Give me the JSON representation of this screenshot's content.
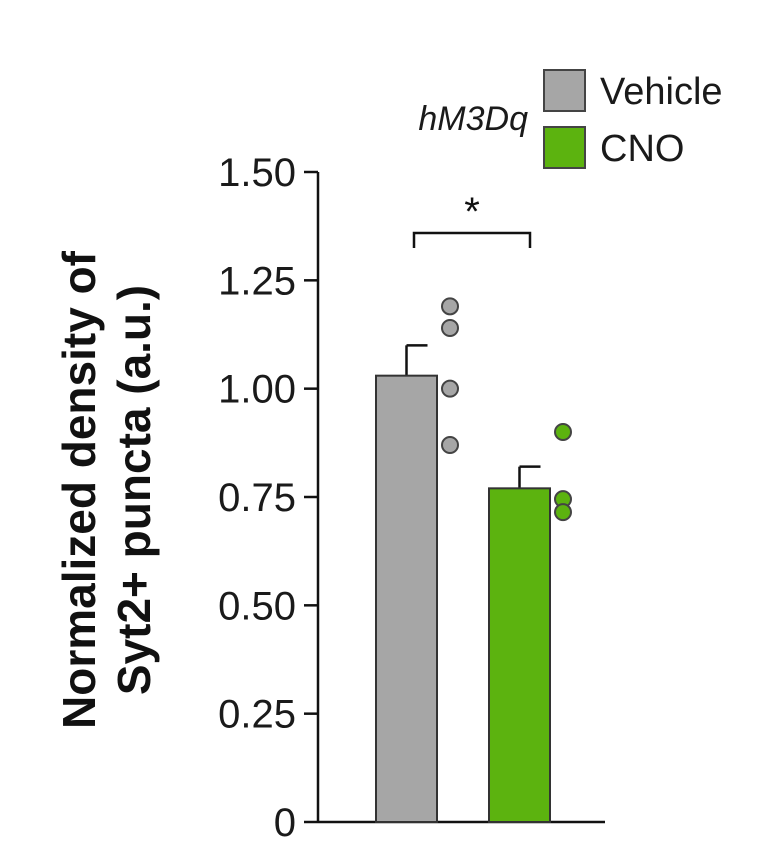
{
  "chart_data": {
    "type": "bar",
    "ylabel_lines": [
      "Normalized density of",
      "Syt2+ puncta (a.u.)"
    ],
    "ylim": [
      0,
      1.5
    ],
    "yticks": [
      "0",
      "0.25",
      "0.50",
      "0.75",
      "1.00",
      "1.25",
      "1.50"
    ],
    "ytick_values": [
      0,
      0.25,
      0.5,
      0.75,
      1.0,
      1.25,
      1.5
    ],
    "legend_title": "hM3Dq",
    "legend_placement": "top-right",
    "series": [
      {
        "name": "Vehicle",
        "value": 1.03,
        "error": 0.07,
        "color": "#a6a6a6",
        "points": [
          1.19,
          1.14,
          1.0,
          0.87
        ]
      },
      {
        "name": "CNO",
        "value": 0.77,
        "error": 0.05,
        "color": "#5cb30f",
        "points": [
          0.9,
          0.745,
          0.715
        ]
      }
    ],
    "significance": {
      "label": "*",
      "between": [
        "Vehicle",
        "CNO"
      ]
    }
  }
}
